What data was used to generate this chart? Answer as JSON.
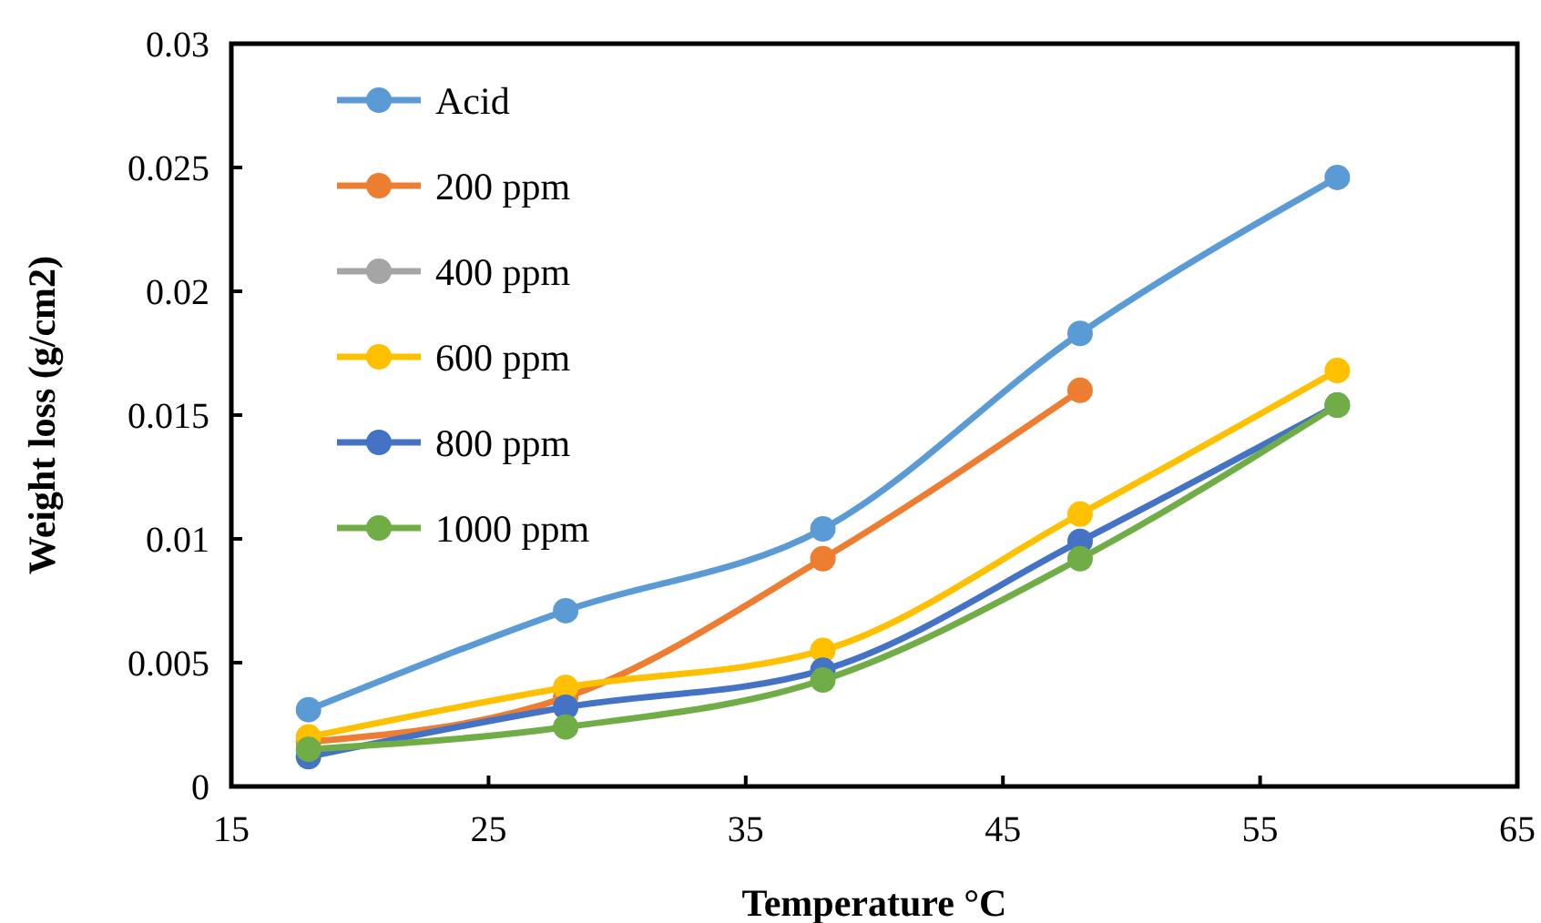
{
  "chart_data": {
    "type": "line",
    "xlabel": "Temperature °C",
    "ylabel": "Weight loss (g/cm2)",
    "x": [
      18,
      28,
      38,
      48,
      58
    ],
    "xlim": [
      15,
      65
    ],
    "xticks": [
      15,
      25,
      35,
      45,
      55,
      65
    ],
    "ylim": [
      0,
      0.03
    ],
    "yticks": [
      0,
      0.005,
      0.01,
      0.015,
      0.02,
      0.025,
      0.03
    ],
    "grid": false,
    "legend": "top left",
    "marker": "circle",
    "line_style": "solid",
    "series": [
      {
        "name": "Acid",
        "color": "#5b9bd5",
        "values": [
          0.0031,
          0.0071,
          0.0104,
          0.0183,
          0.0246
        ]
      },
      {
        "name": "200 ppm",
        "color": "#ed7d31",
        "values": [
          0.0018,
          0.0036,
          0.0092,
          0.016,
          null
        ]
      },
      {
        "name": "400 ppm",
        "color": "#a5a5a5",
        "values": [
          null,
          null,
          null,
          null,
          null
        ]
      },
      {
        "name": "600 ppm",
        "color": "#ffc000",
        "values": [
          0.002,
          0.004,
          0.0055,
          0.011,
          0.0168
        ]
      },
      {
        "name": "800 ppm",
        "color": "#4472c4",
        "values": [
          0.0012,
          0.0032,
          0.0047,
          0.0099,
          0.0154
        ]
      },
      {
        "name": "1000 ppm",
        "color": "#70ad47",
        "values": [
          0.0015,
          0.0024,
          0.0043,
          0.0092,
          0.0154
        ]
      }
    ]
  }
}
